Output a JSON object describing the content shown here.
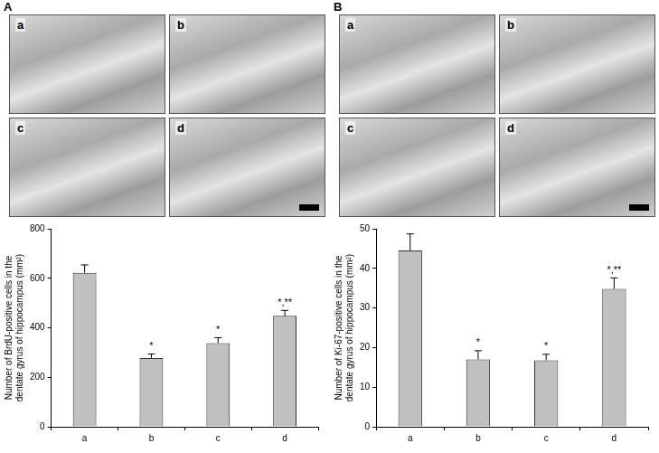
{
  "panel_labels": [
    "A",
    "B"
  ],
  "image_labels": [
    [
      "a",
      "b",
      "c",
      "d"
    ],
    [
      "a",
      "b",
      "c",
      "d"
    ]
  ],
  "chart_data": [
    {
      "type": "bar",
      "y_label": "Number of BrdU-positive cells in the dentate gyrus of hippocampus (mm²)",
      "categories": [
        "a",
        "b",
        "c",
        "d"
      ],
      "values": [
        622,
        278,
        338,
        448
      ],
      "errors": [
        32,
        16,
        22,
        22
      ],
      "annotations": [
        null,
        "*",
        "*",
        "*,**"
      ],
      "color": "#c0c0c0",
      "ylim": [
        0,
        800
      ],
      "yticks": [
        0,
        200,
        400,
        600,
        800
      ],
      "grid": false
    },
    {
      "type": "bar",
      "y_label": "Number of Ki-67-positive cells in the dentate gyrus of hippocampus (mm²)",
      "categories": [
        "a",
        "b",
        "c",
        "d"
      ],
      "values": [
        44.5,
        17,
        16.8,
        34.8
      ],
      "errors": [
        4.2,
        2.2,
        1.5,
        2.8
      ],
      "annotations": [
        null,
        "*",
        "*",
        "*,**"
      ],
      "color": "#c0c0c0",
      "ylim": [
        0,
        50
      ],
      "yticks": [
        0,
        10,
        20,
        30,
        40,
        50
      ],
      "grid": false
    }
  ]
}
